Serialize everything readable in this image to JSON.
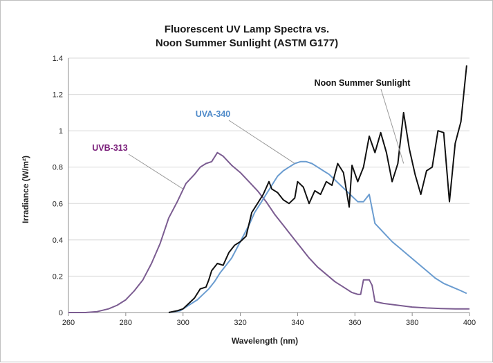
{
  "chart_data": {
    "type": "line",
    "title_lines": [
      "Fluorescent UV Lamp Spectra vs.",
      "Noon Summer Sunlight (ASTM G177)"
    ],
    "xlabel": "Wavelength (nm)",
    "ylabel": "Irradiance (W/m²)",
    "xlim": [
      260,
      400
    ],
    "ylim": [
      0,
      1.4
    ],
    "x_ticks": [
      260,
      280,
      300,
      320,
      340,
      360,
      380,
      400
    ],
    "y_ticks": [
      0,
      0.2,
      0.4,
      0.6,
      0.8,
      1,
      1.2,
      1.4
    ],
    "y_tick_labels": [
      "0",
      "0.2",
      "0.4",
      "0.6",
      "0.8",
      "1",
      "1.2",
      "1.4"
    ],
    "grid": "horizontal",
    "legend": "annotations",
    "series": [
      {
        "name": "UVB-313",
        "color": "#7b5c91",
        "label_color": "#7a1e7a",
        "points": [
          [
            260,
            0
          ],
          [
            266,
            0
          ],
          [
            270,
            0.005
          ],
          [
            274,
            0.02
          ],
          [
            277,
            0.04
          ],
          [
            280,
            0.07
          ],
          [
            283,
            0.12
          ],
          [
            286,
            0.18
          ],
          [
            289,
            0.27
          ],
          [
            292,
            0.38
          ],
          [
            295,
            0.52
          ],
          [
            298,
            0.61
          ],
          [
            301,
            0.71
          ],
          [
            304,
            0.76
          ],
          [
            306,
            0.8
          ],
          [
            308,
            0.82
          ],
          [
            310,
            0.83
          ],
          [
            312,
            0.88
          ],
          [
            314,
            0.86
          ],
          [
            317,
            0.81
          ],
          [
            320,
            0.77
          ],
          [
            323,
            0.72
          ],
          [
            326,
            0.67
          ],
          [
            329,
            0.61
          ],
          [
            332,
            0.54
          ],
          [
            335,
            0.48
          ],
          [
            338,
            0.42
          ],
          [
            341,
            0.36
          ],
          [
            344,
            0.3
          ],
          [
            347,
            0.25
          ],
          [
            350,
            0.21
          ],
          [
            353,
            0.17
          ],
          [
            356,
            0.14
          ],
          [
            359,
            0.11
          ],
          [
            361,
            0.1
          ],
          [
            362,
            0.1
          ],
          [
            363,
            0.18
          ],
          [
            365,
            0.18
          ],
          [
            366,
            0.15
          ],
          [
            367,
            0.06
          ],
          [
            370,
            0.05
          ],
          [
            375,
            0.04
          ],
          [
            380,
            0.03
          ],
          [
            385,
            0.025
          ],
          [
            390,
            0.022
          ],
          [
            395,
            0.02
          ],
          [
            400,
            0.02
          ]
        ]
      },
      {
        "name": "UVA-340",
        "color": "#6a9cd0",
        "label_color": "#4f8ac9",
        "points": [
          [
            295,
            0
          ],
          [
            299,
            0.01
          ],
          [
            301,
            0.03
          ],
          [
            303,
            0.05
          ],
          [
            305,
            0.07
          ],
          [
            307,
            0.1
          ],
          [
            309,
            0.13
          ],
          [
            311,
            0.17
          ],
          [
            313,
            0.22
          ],
          [
            315,
            0.26
          ],
          [
            317,
            0.3
          ],
          [
            319,
            0.36
          ],
          [
            321,
            0.42
          ],
          [
            323,
            0.48
          ],
          [
            325,
            0.55
          ],
          [
            327,
            0.6
          ],
          [
            329,
            0.65
          ],
          [
            331,
            0.7
          ],
          [
            333,
            0.75
          ],
          [
            335,
            0.78
          ],
          [
            337,
            0.8
          ],
          [
            339,
            0.82
          ],
          [
            341,
            0.83
          ],
          [
            343,
            0.83
          ],
          [
            345,
            0.82
          ],
          [
            347,
            0.8
          ],
          [
            349,
            0.78
          ],
          [
            351,
            0.76
          ],
          [
            353,
            0.73
          ],
          [
            355,
            0.7
          ],
          [
            357,
            0.67
          ],
          [
            359,
            0.64
          ],
          [
            361,
            0.61
          ],
          [
            363,
            0.61
          ],
          [
            365,
            0.65
          ],
          [
            367,
            0.49
          ],
          [
            370,
            0.44
          ],
          [
            373,
            0.39
          ],
          [
            376,
            0.35
          ],
          [
            379,
            0.31
          ],
          [
            382,
            0.27
          ],
          [
            385,
            0.23
          ],
          [
            388,
            0.19
          ],
          [
            391,
            0.16
          ],
          [
            394,
            0.14
          ],
          [
            397,
            0.12
          ],
          [
            399,
            0.105
          ]
        ]
      },
      {
        "name": "Noon Summer Sunlight",
        "color": "#111111",
        "label_color": "#111111",
        "points": [
          [
            295,
            0
          ],
          [
            298,
            0.01
          ],
          [
            300,
            0.02
          ],
          [
            302,
            0.05
          ],
          [
            304,
            0.08
          ],
          [
            306,
            0.13
          ],
          [
            308,
            0.14
          ],
          [
            309,
            0.18
          ],
          [
            310,
            0.23
          ],
          [
            312,
            0.27
          ],
          [
            314,
            0.26
          ],
          [
            316,
            0.33
          ],
          [
            318,
            0.37
          ],
          [
            320,
            0.39
          ],
          [
            322,
            0.42
          ],
          [
            324,
            0.55
          ],
          [
            326,
            0.6
          ],
          [
            328,
            0.65
          ],
          [
            330,
            0.72
          ],
          [
            331,
            0.68
          ],
          [
            333,
            0.66
          ],
          [
            335,
            0.62
          ],
          [
            337,
            0.6
          ],
          [
            339,
            0.63
          ],
          [
            340,
            0.72
          ],
          [
            342,
            0.69
          ],
          [
            344,
            0.6
          ],
          [
            346,
            0.67
          ],
          [
            348,
            0.65
          ],
          [
            350,
            0.72
          ],
          [
            352,
            0.7
          ],
          [
            354,
            0.82
          ],
          [
            356,
            0.77
          ],
          [
            358,
            0.58
          ],
          [
            359,
            0.81
          ],
          [
            361,
            0.72
          ],
          [
            363,
            0.8
          ],
          [
            365,
            0.97
          ],
          [
            367,
            0.88
          ],
          [
            369,
            0.99
          ],
          [
            371,
            0.88
          ],
          [
            373,
            0.72
          ],
          [
            375,
            0.82
          ],
          [
            377,
            1.1
          ],
          [
            379,
            0.9
          ],
          [
            381,
            0.76
          ],
          [
            383,
            0.65
          ],
          [
            385,
            0.78
          ],
          [
            387,
            0.8
          ],
          [
            389,
            1.0
          ],
          [
            391,
            0.99
          ],
          [
            393,
            0.61
          ],
          [
            395,
            0.93
          ],
          [
            397,
            1.05
          ],
          [
            399,
            1.36
          ]
        ]
      }
    ],
    "annotations": [
      {
        "text": "UVB-313",
        "series": 0,
        "target": [
          300,
          0.68
        ]
      },
      {
        "text": "UVA-340",
        "series": 1,
        "target": [
          339,
          0.82
        ]
      },
      {
        "text": "Noon Summer Sunlight",
        "series": 2,
        "target": [
          377,
          0.82
        ]
      }
    ]
  }
}
